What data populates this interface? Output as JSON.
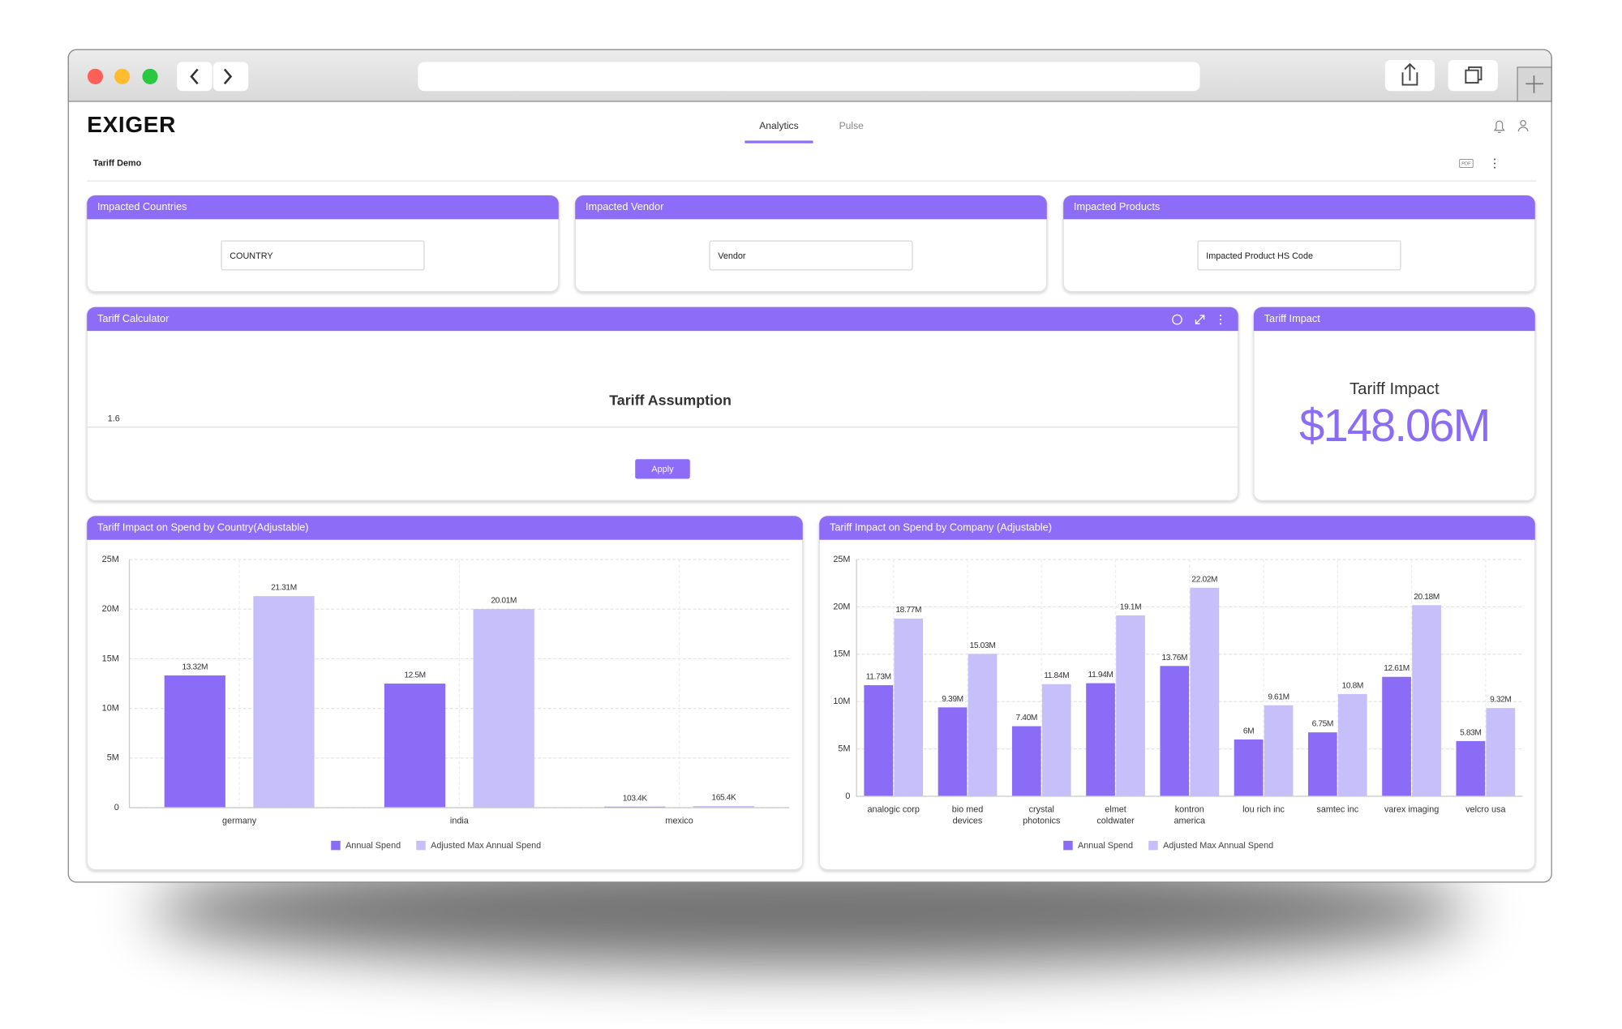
{
  "header": {
    "logo": "EXIGER",
    "tabs": [
      "Analytics",
      "Pulse"
    ]
  },
  "page_title": "Tariff Demo",
  "export_icon": "PDF",
  "filters": [
    {
      "title": "Impacted Countries",
      "placeholder": "COUNTRY"
    },
    {
      "title": "Impacted Vendor",
      "placeholder": "Vendor"
    },
    {
      "title": "Impacted Products",
      "placeholder": "Impacted Product HS Code"
    }
  ],
  "calculator": {
    "title": "Tariff Calculator",
    "heading": "Tariff Assumption",
    "slider_value": 1.6,
    "button": "Apply"
  },
  "impact": {
    "title": "Tariff Impact",
    "heading": "Tariff Impact",
    "value": "$148.06M"
  },
  "charts": [
    {
      "type": "bar",
      "title": "Tariff Impact on Spend by Country(Adjustable)",
      "categories": [
        "germany",
        "india",
        "mexico"
      ],
      "series": [
        {
          "name": "Annual Spend",
          "color": "#8b6cf7",
          "values": [
            13.32,
            12.5,
            0.1034
          ],
          "value_labels": [
            "13.32M",
            "12.5M",
            "103.4K"
          ]
        },
        {
          "name": "Adjusted Max Annual Spend",
          "color": "#c6bffa",
          "values": [
            21.31,
            20.01,
            0.1654
          ],
          "value_labels": [
            "21.31M",
            "20.01M",
            "165.4K"
          ]
        }
      ],
      "ylim": [
        0,
        25
      ],
      "yticks": [
        0,
        {
          "value": 5,
          "label": "5M"
        },
        {
          "value": 10,
          "label": "10M"
        },
        {
          "value": 15,
          "label": "15M"
        },
        {
          "value": 20,
          "label": "20M"
        },
        {
          "value": 25,
          "label": "25M"
        }
      ],
      "grid": true
    },
    {
      "type": "bar",
      "title": "Tariff Impact on Spend by Company (Adjustable)",
      "categories": [
        "analogic corp",
        "bio med devices",
        "crystal photonics",
        "elmet coldwater",
        "kontron america",
        "lou rich inc",
        "samtec inc",
        "varex imaging",
        "velcro usa"
      ],
      "series": [
        {
          "name": "Annual Spend",
          "color": "#8b6cf7",
          "values": [
            11.73,
            9.39,
            7.4,
            11.94,
            13.76,
            6,
            6.75,
            12.61,
            5.83
          ],
          "value_labels": [
            "11.73M",
            "9.39M",
            "7.40M",
            "11.94M",
            "13.76M",
            "6M",
            "6.75M",
            "12.61M",
            "5.83M"
          ]
        },
        {
          "name": "Adjusted Max Annual Spend",
          "color": "#c6bffa",
          "values": [
            18.77,
            15.03,
            11.84,
            19.1,
            22.02,
            9.61,
            10.8,
            20.18,
            9.32
          ],
          "value_labels": [
            "18.77M",
            "15.03M",
            "11.84M",
            "19.1M",
            "22.02M",
            "9.61M",
            "10.8M",
            "20.18M",
            "9.32M"
          ]
        }
      ],
      "ylim": [
        0,
        25
      ],
      "yticks": [
        0,
        {
          "value": 5,
          "label": "5M"
        },
        {
          "value": 10,
          "label": "10M"
        },
        {
          "value": 15,
          "label": "15M"
        },
        {
          "value": 20,
          "label": "20M"
        },
        {
          "value": 25,
          "label": "25M"
        }
      ],
      "grid": true
    }
  ]
}
